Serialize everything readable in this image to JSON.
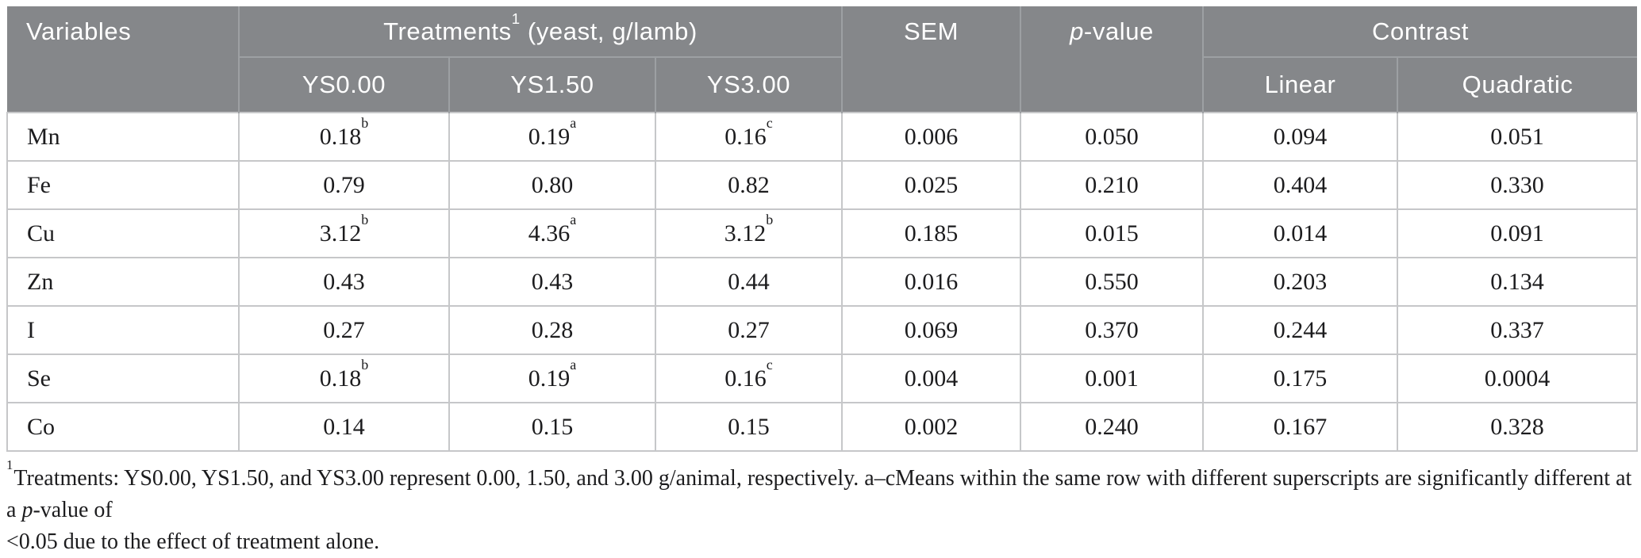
{
  "colors": {
    "header_bg": "#85878A",
    "header_text": "#FFFFFF",
    "header_divider": "#9DA0A3",
    "body_border": "#C6C7C9",
    "body_text": "#1C1C1E"
  },
  "table": {
    "header": {
      "variables": "Variables",
      "treatments_label": "Treatments",
      "treatments_sup": "1",
      "treatments_unit": " (yeast, g/lamb)",
      "treatment_cols": [
        "YS0.00",
        "YS1.50",
        "YS3.00"
      ],
      "sem": "SEM",
      "p_italic": "p",
      "p_suffix": "-value",
      "contrast_label": "Contrast",
      "contrast_cols": [
        "Linear",
        "Quadratic"
      ]
    },
    "rows": [
      {
        "variable": "Mn",
        "treatments": [
          {
            "value": "0.18",
            "sup": "b"
          },
          {
            "value": "0.19",
            "sup": "a"
          },
          {
            "value": "0.16",
            "sup": "c"
          }
        ],
        "sem": "0.006",
        "p_value": "0.050",
        "linear": "0.094",
        "quadratic": "0.051"
      },
      {
        "variable": "Fe",
        "treatments": [
          {
            "value": "0.79",
            "sup": ""
          },
          {
            "value": "0.80",
            "sup": ""
          },
          {
            "value": "0.82",
            "sup": ""
          }
        ],
        "sem": "0.025",
        "p_value": "0.210",
        "linear": "0.404",
        "quadratic": "0.330"
      },
      {
        "variable": "Cu",
        "treatments": [
          {
            "value": "3.12",
            "sup": "b"
          },
          {
            "value": "4.36",
            "sup": "a"
          },
          {
            "value": "3.12",
            "sup": "b"
          }
        ],
        "sem": "0.185",
        "p_value": "0.015",
        "linear": "0.014",
        "quadratic": "0.091"
      },
      {
        "variable": "Zn",
        "treatments": [
          {
            "value": "0.43",
            "sup": ""
          },
          {
            "value": "0.43",
            "sup": ""
          },
          {
            "value": "0.44",
            "sup": ""
          }
        ],
        "sem": "0.016",
        "p_value": "0.550",
        "linear": "0.203",
        "quadratic": "0.134"
      },
      {
        "variable": "I",
        "treatments": [
          {
            "value": "0.27",
            "sup": ""
          },
          {
            "value": "0.28",
            "sup": ""
          },
          {
            "value": "0.27",
            "sup": ""
          }
        ],
        "sem": "0.069",
        "p_value": "0.370",
        "linear": "0.244",
        "quadratic": "0.337"
      },
      {
        "variable": "Se",
        "treatments": [
          {
            "value": "0.18",
            "sup": "b"
          },
          {
            "value": "0.19",
            "sup": "a"
          },
          {
            "value": "0.16",
            "sup": "c"
          }
        ],
        "sem": "0.004",
        "p_value": "0.001",
        "linear": "0.175",
        "quadratic": "0.0004"
      },
      {
        "variable": "Co",
        "treatments": [
          {
            "value": "0.14",
            "sup": ""
          },
          {
            "value": "0.15",
            "sup": ""
          },
          {
            "value": "0.15",
            "sup": ""
          }
        ],
        "sem": "0.002",
        "p_value": "0.240",
        "linear": "0.167",
        "quadratic": "0.328"
      }
    ]
  },
  "footnote": {
    "sup": "1",
    "line1_before_p": "Treatments: YS0.00, YS1.50, and YS3.00 represent 0.00, 1.50, and 3.00 g/animal, respectively. a–cMeans within the same row with different superscripts are significantly different at a ",
    "p_italic": "p",
    "line1_after_p": "-value of",
    "line2": "<0.05 due to the effect of treatment alone."
  }
}
